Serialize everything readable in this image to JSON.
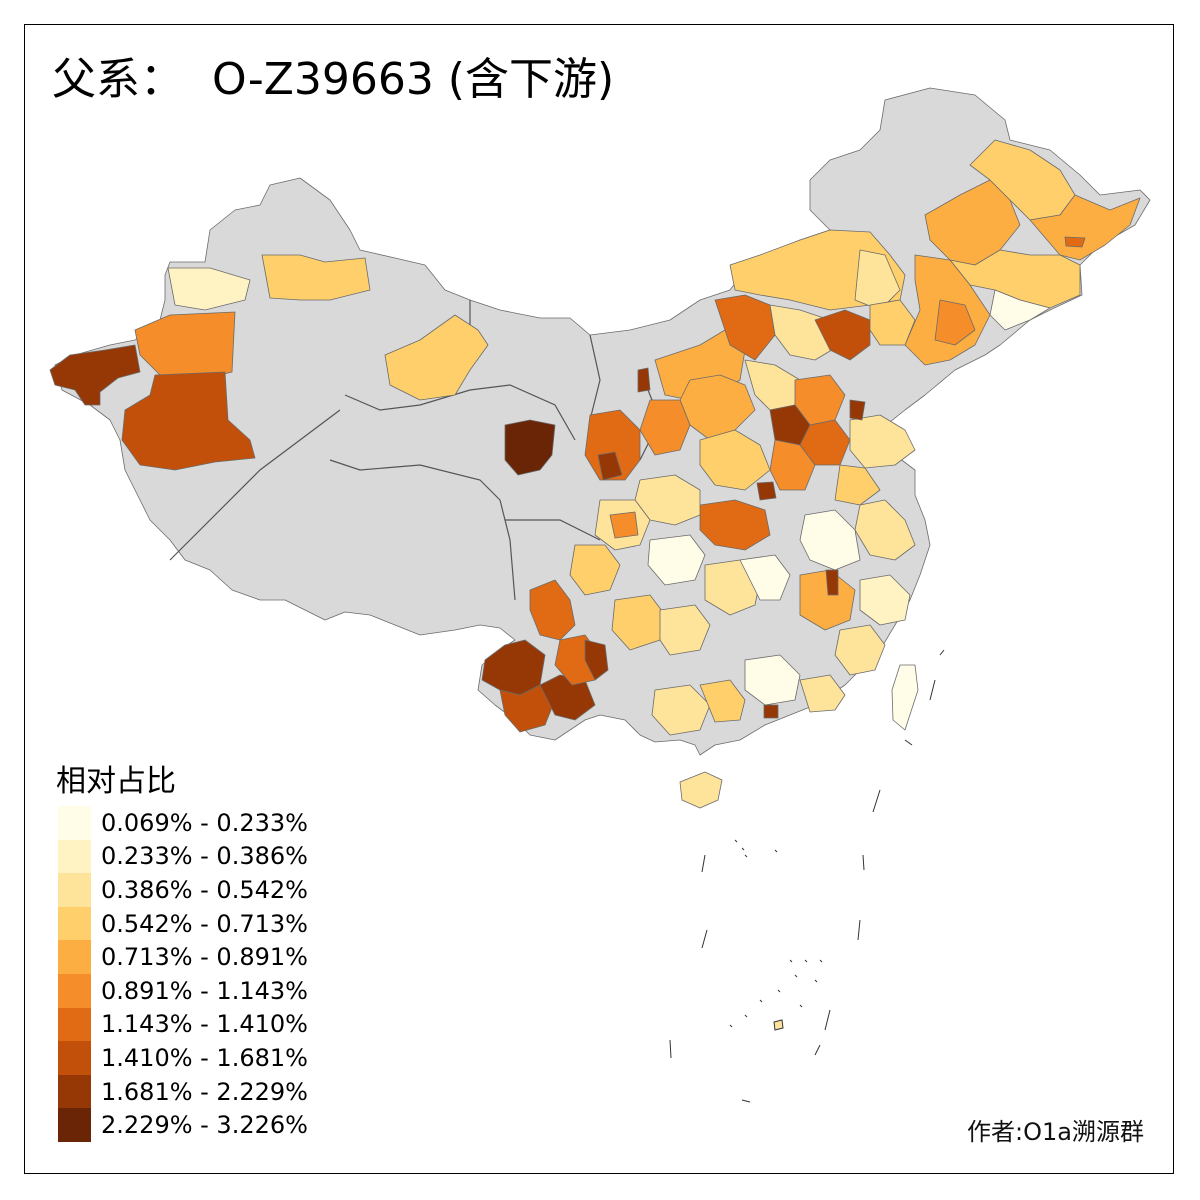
{
  "title": "父系：  O-Z39663 (含下游)",
  "legend": {
    "title": "相对占比",
    "classes": [
      {
        "label": "0.069% - 0.233%",
        "color": "#fffde8"
      },
      {
        "label": "0.233% - 0.386%",
        "color": "#fff3c4"
      },
      {
        "label": "0.386% - 0.542%",
        "color": "#fee49a"
      },
      {
        "label": "0.542% - 0.713%",
        "color": "#fecf6a"
      },
      {
        "label": "0.713% - 0.891%",
        "color": "#fdae42"
      },
      {
        "label": "0.891% - 1.143%",
        "color": "#f48d2a"
      },
      {
        "label": "1.143% - 1.410%",
        "color": "#e06b14"
      },
      {
        "label": "1.410% - 1.681%",
        "color": "#c2500a"
      },
      {
        "label": "1.681% - 2.229%",
        "color": "#963806"
      },
      {
        "label": "2.229% - 3.226%",
        "color": "#6a2506"
      }
    ]
  },
  "no_data_color": "#d9d9d9",
  "credit": "作者:O1a溯源群"
}
